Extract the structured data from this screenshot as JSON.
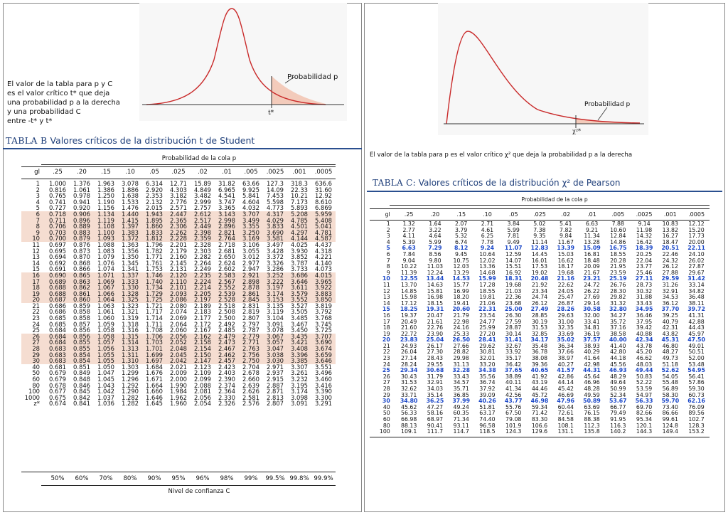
{
  "left_panel": {
    "note": "El valor de la tabla para p y C\nes el valor crítico t* que deja\nuna probabilidad p a la derecha\ny una probabilidad C\nentre -t* y t*",
    "figure": {
      "area_label": "Probabilidad p",
      "critical_label": "t*"
    },
    "table_label": "TABLA B",
    "table_title": "Valores críticos de la distribución t de Student",
    "caption": "Probabilidad de la cola p",
    "footer_caption": "Nivel de confianza C",
    "header": [
      "gl",
      ".25",
      ".20",
      ".15",
      ".10",
      ".05",
      ".025",
      ".02",
      ".01",
      ".005",
      ".0025",
      ".001",
      ".0005"
    ],
    "rows": [
      [
        "1",
        "1.000",
        "1.376",
        "1.963",
        "3.078",
        "6.314",
        "12.71",
        "15.89",
        "31.82",
        "63.66",
        "127.3",
        "318.3",
        "636.6"
      ],
      [
        "2",
        "0.816",
        "1.061",
        "1.386",
        "1.886",
        "2.920",
        "4.303",
        "4.849",
        "6.965",
        "9.925",
        "14.09",
        "22.33",
        "31.60"
      ],
      [
        "3",
        "0.765",
        "0.978",
        "1.250",
        "1.638",
        "2.353",
        "3.182",
        "3.482",
        "4.541",
        "5.841",
        "7.453",
        "10.21",
        "12.92"
      ],
      [
        "4",
        "0.741",
        "0.941",
        "1.190",
        "1.533",
        "2.132",
        "2.776",
        "2.999",
        "3.747",
        "4.604",
        "5.598",
        "7.173",
        "8.610"
      ],
      [
        "5",
        "0.727",
        "0.920",
        "1.156",
        "1.476",
        "2.015",
        "2.571",
        "2.757",
        "3.365",
        "4.032",
        "4.773",
        "5.893",
        "6.869"
      ],
      [
        "6",
        "0.718",
        "0.906",
        "1.134",
        "1.440",
        "1.943",
        "2.447",
        "2.612",
        "3.143",
        "3.707",
        "4.317",
        "5.208",
        "5.959"
      ],
      [
        "7",
        "0.711",
        "0.896",
        "1.119",
        "1.415",
        "1.895",
        "2.365",
        "2.517",
        "2.998",
        "3.499",
        "4.029",
        "4.785",
        "5.408"
      ],
      [
        "8",
        "0.706",
        "0.889",
        "1.108",
        "1.397",
        "1.860",
        "2.306",
        "2.449",
        "2.896",
        "3.355",
        "3.833",
        "4.501",
        "5.041"
      ],
      [
        "9",
        "0.703",
        "0.883",
        "1.100",
        "1.383",
        "1.833",
        "2.262",
        "2.398",
        "2.821",
        "3.250",
        "3.690",
        "4.297",
        "4.781"
      ],
      [
        "10",
        "0.700",
        "0.879",
        "1.093",
        "1.372",
        "1.812",
        "2.228",
        "2.359",
        "2.764",
        "3.169",
        "3.581",
        "4.144",
        "4.587"
      ],
      [
        "11",
        "0.697",
        "0.876",
        "1.088",
        "1.363",
        "1.796",
        "2.201",
        "2.328",
        "2.718",
        "3.106",
        "3.497",
        "4.025",
        "4.437"
      ],
      [
        "12",
        "0.695",
        "0.873",
        "1.083",
        "1.356",
        "1.782",
        "2.179",
        "2.303",
        "2.681",
        "3.055",
        "3.428",
        "3.930",
        "4.318"
      ],
      [
        "13",
        "0.694",
        "0.870",
        "1.079",
        "1.350",
        "1.771",
        "2.160",
        "2.282",
        "2.650",
        "3.012",
        "3.372",
        "3.852",
        "4.221"
      ],
      [
        "14",
        "0.692",
        "0.868",
        "1.076",
        "1.345",
        "1.761",
        "2.145",
        "2.264",
        "2.624",
        "2.977",
        "3.326",
        "3.787",
        "4.140"
      ],
      [
        "15",
        "0.691",
        "0.866",
        "1.074",
        "1.341",
        "1.753",
        "2.131",
        "2.249",
        "2.602",
        "2.947",
        "3.286",
        "3.733",
        "4.073"
      ],
      [
        "16",
        "0.690",
        "0.865",
        "1.071",
        "1.337",
        "1.746",
        "2.120",
        "2.235",
        "2.583",
        "2.921",
        "3.252",
        "3.686",
        "4.015"
      ],
      [
        "17",
        "0.689",
        "0.863",
        "1.069",
        "1.333",
        "1.740",
        "2.110",
        "2.224",
        "2.567",
        "2.898",
        "3.222",
        "3.646",
        "3.965"
      ],
      [
        "18",
        "0.688",
        "0.862",
        "1.067",
        "1.330",
        "1.734",
        "2.101",
        "2.214",
        "2.552",
        "2.878",
        "3.197",
        "3.611",
        "3.922"
      ],
      [
        "19",
        "0.688",
        "0.861",
        "1.066",
        "1.328",
        "1.729",
        "2.093",
        "2.205",
        "2.539",
        "2.861",
        "3.174",
        "3.579",
        "3.883"
      ],
      [
        "20",
        "0.687",
        "0.860",
        "1.064",
        "1.325",
        "1.725",
        "2.086",
        "2.197",
        "2.528",
        "2.845",
        "3.153",
        "3.552",
        "3.850"
      ],
      [
        "21",
        "0.686",
        "0.859",
        "1.063",
        "1.323",
        "1.721",
        "2.080",
        "2.189",
        "2.518",
        "2.831",
        "3.135",
        "3.527",
        "3.819"
      ],
      [
        "22",
        "0.686",
        "0.858",
        "1.061",
        "1.321",
        "1.717",
        "2.074",
        "2.183",
        "2.508",
        "2.819",
        "3.119",
        "3.505",
        "3.792"
      ],
      [
        "23",
        "0.685",
        "0.858",
        "1.060",
        "1.319",
        "1.714",
        "2.069",
        "2.177",
        "2.500",
        "2.807",
        "3.104",
        "3.485",
        "3.768"
      ],
      [
        "24",
        "0.685",
        "0.857",
        "1.059",
        "1.318",
        "1.711",
        "2.064",
        "2.172",
        "2.492",
        "2.797",
        "3.091",
        "3.467",
        "3.745"
      ],
      [
        "25",
        "0.684",
        "0.856",
        "1.058",
        "1.316",
        "1.708",
        "2.060",
        "2.167",
        "2.485",
        "2.787",
        "3.078",
        "3.450",
        "3.725"
      ],
      [
        "26",
        "0.684",
        "0.856",
        "1.058",
        "1.315",
        "1.706",
        "2.056",
        "2.162",
        "2.479",
        "2.779",
        "3.067",
        "3.435",
        "3.707"
      ],
      [
        "27",
        "0.684",
        "0.855",
        "1.057",
        "1.314",
        "1.703",
        "2.052",
        "2.158",
        "2.473",
        "2.771",
        "3.057",
        "3.421",
        "3.690"
      ],
      [
        "28",
        "0.683",
        "0.855",
        "1.056",
        "1.313",
        "1.701",
        "2.048",
        "2.154",
        "2.467",
        "2.763",
        "3.047",
        "3.408",
        "3.674"
      ],
      [
        "29",
        "0.683",
        "0.854",
        "1.055",
        "1.311",
        "1.699",
        "2.045",
        "2.150",
        "2.462",
        "2.756",
        "3.038",
        "3.396",
        "3.659"
      ],
      [
        "30",
        "0.683",
        "0.854",
        "1.055",
        "1.310",
        "1.697",
        "2.042",
        "2.147",
        "2.457",
        "2.750",
        "3.030",
        "3.385",
        "3.646"
      ],
      [
        "40",
        "0.681",
        "0.851",
        "1.050",
        "1.303",
        "1.684",
        "2.021",
        "2.123",
        "2.423",
        "2.704",
        "2.971",
        "3.307",
        "3.551"
      ],
      [
        "50",
        "0.679",
        "0.849",
        "1.047",
        "1.299",
        "1.676",
        "2.009",
        "2.109",
        "2.403",
        "2.678",
        "2.937",
        "3.261",
        "3.496"
      ],
      [
        "60",
        "0.679",
        "0.848",
        "1.045",
        "1.296",
        "1.671",
        "2.000",
        "2.099",
        "2.390",
        "2.660",
        "2.915",
        "3.232",
        "3.460"
      ],
      [
        "80",
        "0.678",
        "0.846",
        "1.043",
        "1.292",
        "1.664",
        "1.990",
        "2.088",
        "2.374",
        "2.639",
        "2.887",
        "3.195",
        "3.416"
      ],
      [
        "100",
        "0.677",
        "0.845",
        "1.042",
        "1.290",
        "1.660",
        "1.984",
        "2.081",
        "2.364",
        "2.626",
        "2.871",
        "3.174",
        "3.390"
      ],
      [
        "1000",
        "0.675",
        "0.842",
        "1.037",
        "1.282",
        "1.646",
        "1.962",
        "2.056",
        "2.330",
        "2.581",
        "2.813",
        "3.098",
        "3.300"
      ],
      [
        "z*",
        "0.674",
        "0.841",
        "1.036",
        "1.282",
        "1.645",
        "1.960",
        "2.054",
        "2.326",
        "2.576",
        "2.807",
        "3.091",
        "3.291"
      ]
    ],
    "footer": [
      "50%",
      "60%",
      "70%",
      "80%",
      "90%",
      "95%",
      "96%",
      "98%",
      "99%",
      "99.5%",
      "99.8%",
      "99.9%"
    ]
  },
  "right_panel": {
    "note": "El valor de la tabla para p es el valor crítico χ² que deja la probabilidad p a la derecha",
    "figure": {
      "area_label": "Probabilidad p",
      "critical_label": "χ²*"
    },
    "table_label": "TABLA C:",
    "table_title": "Valores críticos de la distribución χ² de Pearson",
    "caption": "Probabilidad de la cola p",
    "header": [
      "gl",
      ".25",
      ".20",
      ".15",
      ".10",
      ".05",
      ".025",
      ".02",
      ".01",
      ".005",
      ".0025",
      ".001",
      ".0005"
    ],
    "rows": [
      [
        "1",
        "1.32",
        "1.64",
        "2.07",
        "2.71",
        "3.84",
        "5.02",
        "5.41",
        "6.63",
        "7.88",
        "9.14",
        "10.83",
        "12.12"
      ],
      [
        "2",
        "2.77",
        "3.22",
        "3.79",
        "4.61",
        "5.99",
        "7.38",
        "7.82",
        "9.21",
        "10.60",
        "11.98",
        "13.82",
        "15.20"
      ],
      [
        "3",
        "4.11",
        "4.64",
        "5.32",
        "6.25",
        "7.81",
        "9.35",
        "9.84",
        "11.34",
        "12.84",
        "14.32",
        "16.27",
        "17.73"
      ],
      [
        "4",
        "5.39",
        "5.99",
        "6.74",
        "7.78",
        "9.49",
        "11.14",
        "11.67",
        "13.28",
        "14.86",
        "16.42",
        "18.47",
        "20.00"
      ],
      [
        "5",
        "6.63",
        "7.29",
        "8.12",
        "9.24",
        "11.07",
        "12.83",
        "13.39",
        "15.09",
        "16.75",
        "18.39",
        "20.51",
        "22.11"
      ],
      [
        "6",
        "7.84",
        "8.56",
        "9.45",
        "10.64",
        "12.59",
        "14.45",
        "15.03",
        "16.81",
        "18.55",
        "20.25",
        "22.46",
        "24.10"
      ],
      [
        "7",
        "9.04",
        "9.80",
        "10.75",
        "12.02",
        "14.07",
        "16.01",
        "16.62",
        "18.48",
        "20.28",
        "22.04",
        "24.32",
        "26.02"
      ],
      [
        "8",
        "10.22",
        "11.03",
        "12.03",
        "13.36",
        "15.51",
        "17.53",
        "18.17",
        "20.09",
        "21.95",
        "23.77",
        "26.12",
        "27.87"
      ],
      [
        "9",
        "11.39",
        "12.24",
        "13.29",
        "14.68",
        "16.92",
        "19.02",
        "19.68",
        "21.67",
        "23.59",
        "25.46",
        "27.88",
        "29.67"
      ],
      [
        "10",
        "12.55",
        "13.44",
        "14.53",
        "15.99",
        "18.31",
        "20.48",
        "21.16",
        "23.21",
        "25.19",
        "27.11",
        "29.59",
        "31.42"
      ],
      [
        "11",
        "13.70",
        "14.63",
        "15.77",
        "17.28",
        "19.68",
        "21.92",
        "22.62",
        "24.72",
        "26.76",
        "28.73",
        "31.26",
        "33.14"
      ],
      [
        "12",
        "14.85",
        "15.81",
        "16.99",
        "18.55",
        "21.03",
        "23.34",
        "24.05",
        "26.22",
        "28.30",
        "30.32",
        "32.91",
        "34.82"
      ],
      [
        "13",
        "15.98",
        "16.98",
        "18.20",
        "19.81",
        "22.36",
        "24.74",
        "25.47",
        "27.69",
        "29.82",
        "31.88",
        "34.53",
        "36.48"
      ],
      [
        "14",
        "17.12",
        "18.15",
        "19.41",
        "21.06",
        "23.68",
        "26.12",
        "26.87",
        "29.14",
        "31.32",
        "33.43",
        "36.12",
        "38.11"
      ],
      [
        "15",
        "18.25",
        "19.31",
        "20.60",
        "22.31",
        "25.00",
        "27.49",
        "28.26",
        "30.58",
        "32.80",
        "34.95",
        "37.70",
        "39.72"
      ],
      [
        "16",
        "19.37",
        "20.47",
        "21.79",
        "23.54",
        "26.30",
        "28.85",
        "29.63",
        "32.00",
        "34.27",
        "36.46",
        "39.25",
        "41.31"
      ],
      [
        "17",
        "20.49",
        "21.61",
        "22.98",
        "24.77",
        "27.59",
        "30.19",
        "31.00",
        "33.41",
        "35.72",
        "37.95",
        "40.79",
        "42.88"
      ],
      [
        "18",
        "21.60",
        "22.76",
        "24.16",
        "25.99",
        "28.87",
        "31.53",
        "32.35",
        "34.81",
        "37.16",
        "39.42",
        "42.31",
        "44.43"
      ],
      [
        "19",
        "22.72",
        "23.90",
        "25.33",
        "27.20",
        "30.14",
        "32.85",
        "33.69",
        "36.19",
        "38.58",
        "40.88",
        "43.82",
        "45.97"
      ],
      [
        "20",
        "23.83",
        "25.04",
        "26.50",
        "28.41",
        "31.41",
        "34.17",
        "35.02",
        "37.57",
        "40.00",
        "42.34",
        "45.31",
        "47.50"
      ],
      [
        "21",
        "24.93",
        "26.17",
        "27.66",
        "29.62",
        "32.67",
        "35.48",
        "36.34",
        "38.93",
        "41.40",
        "43.78",
        "46.80",
        "49.01"
      ],
      [
        "22",
        "26.04",
        "27.30",
        "28.82",
        "30.81",
        "33.92",
        "36.78",
        "37.66",
        "40.29",
        "42.80",
        "45.20",
        "48.27",
        "50.51"
      ],
      [
        "23",
        "27.14",
        "28.43",
        "29.98",
        "32.01",
        "35.17",
        "38.08",
        "38.97",
        "41.64",
        "44.18",
        "46.62",
        "49.73",
        "52.00"
      ],
      [
        "24",
        "28.24",
        "29.55",
        "31.13",
        "33.20",
        "36.42",
        "39.36",
        "40.27",
        "42.98",
        "45.56",
        "48.03",
        "51.18",
        "53.48"
      ],
      [
        "25",
        "29.34",
        "30.68",
        "32.28",
        "34.38",
        "37.65",
        "40.65",
        "41.57",
        "44.31",
        "46.93",
        "49.44",
        "52.62",
        "54.95"
      ],
      [
        "26",
        "30.43",
        "31.79",
        "33.43",
        "35.56",
        "38.89",
        "41.92",
        "42.86",
        "45.64",
        "48.29",
        "50.83",
        "54.05",
        "56.41"
      ],
      [
        "27",
        "31.53",
        "32.91",
        "34.57",
        "36.74",
        "40.11",
        "43.19",
        "44.14",
        "46.96",
        "49.64",
        "52.22",
        "55.48",
        "57.86"
      ],
      [
        "28",
        "32.62",
        "34.03",
        "35.71",
        "37.92",
        "41.34",
        "44.46",
        "45.42",
        "48.28",
        "50.99",
        "53.59",
        "56.89",
        "59.30"
      ],
      [
        "29",
        "33.71",
        "35.14",
        "36.85",
        "39.09",
        "42.56",
        "45.72",
        "46.69",
        "49.59",
        "52.34",
        "54.97",
        "58.30",
        "60.73"
      ],
      [
        "30",
        "34.80",
        "36.25",
        "37.99",
        "40.26",
        "43.77",
        "46.98",
        "47.96",
        "50.89",
        "53.67",
        "56.33",
        "59.70",
        "62.16"
      ],
      [
        "40",
        "45.62",
        "47.27",
        "49.24",
        "51.81",
        "55.76",
        "59.34",
        "60.44",
        "63.69",
        "66.77",
        "69.70",
        "73.40",
        "76.09"
      ],
      [
        "50",
        "56.33",
        "58.16",
        "60.35",
        "63.17",
        "67.50",
        "71.42",
        "72.61",
        "76.15",
        "79.49",
        "82.66",
        "86.66",
        "89.56"
      ],
      [
        "60",
        "66.98",
        "68.97",
        "71.34",
        "74.40",
        "79.08",
        "83.30",
        "84.58",
        "88.38",
        "91.95",
        "95.34",
        "99.61",
        "102.7"
      ],
      [
        "80",
        "88.13",
        "90.41",
        "93.11",
        "96.58",
        "101.9",
        "106.6",
        "108.1",
        "112.3",
        "116.3",
        "120.1",
        "124.8",
        "128.3"
      ],
      [
        "100",
        "109.1",
        "111.7",
        "114.7",
        "118.5",
        "124.3",
        "129.6",
        "131.1",
        "135.8",
        "140.2",
        "144.3",
        "149.4",
        "153.2"
      ]
    ]
  }
}
